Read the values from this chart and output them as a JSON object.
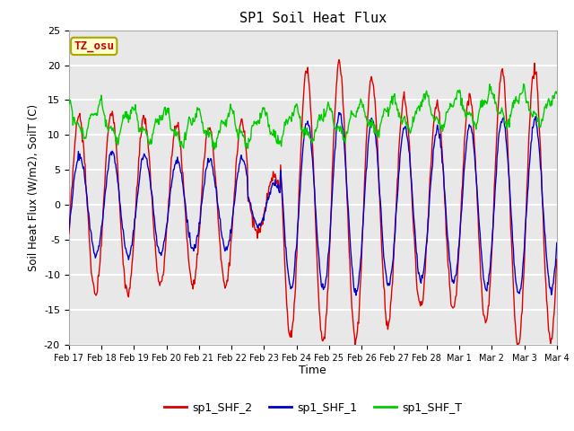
{
  "title": "SP1 Soil Heat Flux",
  "xlabel": "Time",
  "ylabel": "Soil Heat Flux (W/m2), SoilT (C)",
  "ylim": [
    -20,
    25
  ],
  "xlim": [
    0,
    15
  ],
  "bg_color": "#ffffff",
  "plot_bg_color": "#e8e8e8",
  "grid_color": "#ffffff",
  "annotation_text": "TZ_osu",
  "annotation_color": "#cc0000",
  "annotation_bg": "#ffffcc",
  "annotation_border": "#aaa800",
  "legend_entries": [
    "sp1_SHF_2",
    "sp1_SHF_1",
    "sp1_SHF_T"
  ],
  "line_colors": [
    "#dd0000",
    "#0000cc",
    "#00cc00"
  ],
  "tick_labels": [
    "Feb 17",
    "Feb 18",
    "Feb 19",
    "Feb 20",
    "Feb 21",
    "Feb 22",
    "Feb 23",
    "Feb 24",
    "Feb 25",
    "Feb 26",
    "Feb 27",
    "Feb 28",
    "Mar 1",
    "Mar 2",
    "Mar 3",
    "Mar 4"
  ],
  "yticks": [
    -20,
    -15,
    -10,
    -5,
    0,
    5,
    10,
    15,
    20,
    25
  ],
  "figsize": [
    6.4,
    4.8
  ],
  "dpi": 100
}
